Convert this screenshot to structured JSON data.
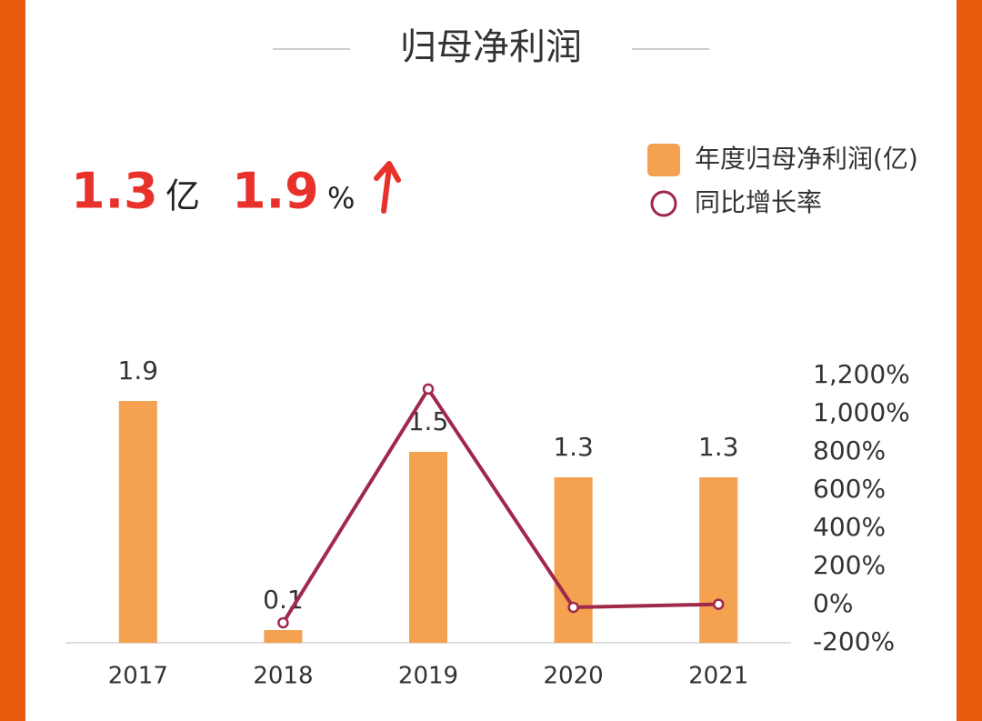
{
  "chart_data": {
    "type": "bar_line",
    "title": "归母净利润",
    "summary": {
      "value": 1.3,
      "unit": "亿",
      "growth": 1.9,
      "growth_unit": "%"
    },
    "categories": [
      "2017",
      "2018",
      "2019",
      "2020",
      "2021"
    ],
    "series": [
      {
        "name": "年度归母净利润(亿)",
        "type": "bar",
        "color": "#F4A150",
        "values": [
          1.9,
          0.1,
          1.5,
          1.3,
          1.3
        ]
      },
      {
        "name": "同比增长率",
        "type": "line",
        "color": "#A0284A",
        "axis": "y2",
        "values": [
          null,
          -95,
          1129,
          -14,
          1.9
        ]
      }
    ],
    "ylim": [
      0,
      2.1
    ],
    "y2lim": [
      -200,
      1200
    ],
    "y2ticks": [
      {
        "value": 1200,
        "label": "1,200%"
      },
      {
        "value": 1000,
        "label": "1,000%"
      },
      {
        "value": 800,
        "label": "800%"
      },
      {
        "value": 600,
        "label": "600%"
      },
      {
        "value": 400,
        "label": "400%"
      },
      {
        "value": 200,
        "label": "200%"
      },
      {
        "value": 0,
        "label": "0%"
      },
      {
        "value": -200,
        "label": "-200%"
      }
    ],
    "legend": "top-right"
  }
}
